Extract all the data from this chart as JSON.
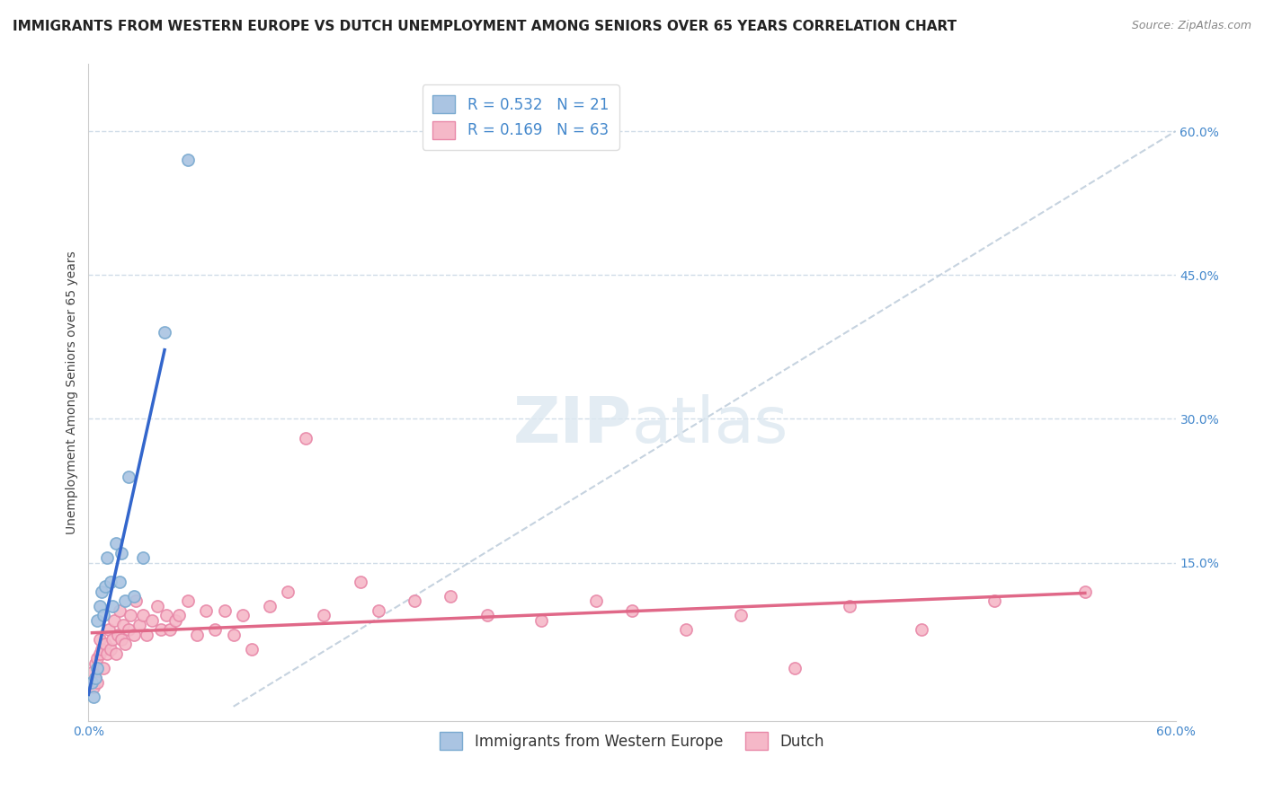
{
  "title": "IMMIGRANTS FROM WESTERN EUROPE VS DUTCH UNEMPLOYMENT AMONG SENIORS OVER 65 YEARS CORRELATION CHART",
  "source": "Source: ZipAtlas.com",
  "ylabel": "Unemployment Among Seniors over 65 years",
  "xlim": [
    0.0,
    0.6
  ],
  "ylim": [
    -0.015,
    0.67
  ],
  "xticks": [
    0.0,
    0.1,
    0.2,
    0.3,
    0.4,
    0.5,
    0.6
  ],
  "xticklabels": [
    "0.0%",
    "",
    "",
    "",
    "",
    "",
    "60.0%"
  ],
  "yticks_right": [
    0.0,
    0.15,
    0.3,
    0.45,
    0.6
  ],
  "ytick_right_labels": [
    "",
    "15.0%",
    "30.0%",
    "45.0%",
    "60.0%"
  ],
  "R_blue": 0.532,
  "N_blue": 21,
  "R_pink": 0.169,
  "N_pink": 63,
  "blue_scatter_x": [
    0.002,
    0.003,
    0.004,
    0.005,
    0.005,
    0.006,
    0.007,
    0.008,
    0.009,
    0.01,
    0.012,
    0.013,
    0.015,
    0.017,
    0.018,
    0.02,
    0.022,
    0.025,
    0.03,
    0.042,
    0.055
  ],
  "blue_scatter_y": [
    0.025,
    0.01,
    0.03,
    0.04,
    0.09,
    0.105,
    0.12,
    0.095,
    0.125,
    0.155,
    0.13,
    0.105,
    0.17,
    0.13,
    0.16,
    0.11,
    0.24,
    0.115,
    0.155,
    0.39,
    0.57
  ],
  "pink_scatter_x": [
    0.002,
    0.003,
    0.004,
    0.004,
    0.005,
    0.005,
    0.006,
    0.006,
    0.007,
    0.008,
    0.009,
    0.01,
    0.011,
    0.012,
    0.013,
    0.014,
    0.015,
    0.016,
    0.017,
    0.018,
    0.019,
    0.02,
    0.022,
    0.023,
    0.025,
    0.026,
    0.028,
    0.03,
    0.032,
    0.035,
    0.038,
    0.04,
    0.043,
    0.045,
    0.048,
    0.05,
    0.055,
    0.06,
    0.065,
    0.07,
    0.075,
    0.08,
    0.085,
    0.09,
    0.1,
    0.11,
    0.12,
    0.13,
    0.15,
    0.16,
    0.18,
    0.2,
    0.22,
    0.25,
    0.28,
    0.3,
    0.33,
    0.36,
    0.39,
    0.42,
    0.46,
    0.5,
    0.55
  ],
  "pink_scatter_y": [
    0.035,
    0.02,
    0.03,
    0.045,
    0.025,
    0.05,
    0.055,
    0.07,
    0.06,
    0.04,
    0.065,
    0.055,
    0.08,
    0.06,
    0.07,
    0.09,
    0.055,
    0.075,
    0.1,
    0.07,
    0.085,
    0.065,
    0.08,
    0.095,
    0.075,
    0.11,
    0.085,
    0.095,
    0.075,
    0.09,
    0.105,
    0.08,
    0.095,
    0.08,
    0.09,
    0.095,
    0.11,
    0.075,
    0.1,
    0.08,
    0.1,
    0.075,
    0.095,
    0.06,
    0.105,
    0.12,
    0.28,
    0.095,
    0.13,
    0.1,
    0.11,
    0.115,
    0.095,
    0.09,
    0.11,
    0.1,
    0.08,
    0.095,
    0.04,
    0.105,
    0.08,
    0.11,
    0.12
  ],
  "blue_color": "#aac4e2",
  "blue_edge_color": "#7aaad0",
  "pink_color": "#f5b8c8",
  "pink_edge_color": "#e888a8",
  "blue_line_color": "#3366cc",
  "pink_line_color": "#e06888",
  "diag_line_color": "#b8c8d8",
  "grid_color": "#d0dce8",
  "title_fontsize": 11,
  "axis_label_fontsize": 10,
  "tick_fontsize": 10,
  "legend_fontsize": 12,
  "marker_size": 90,
  "background_color": "#ffffff"
}
